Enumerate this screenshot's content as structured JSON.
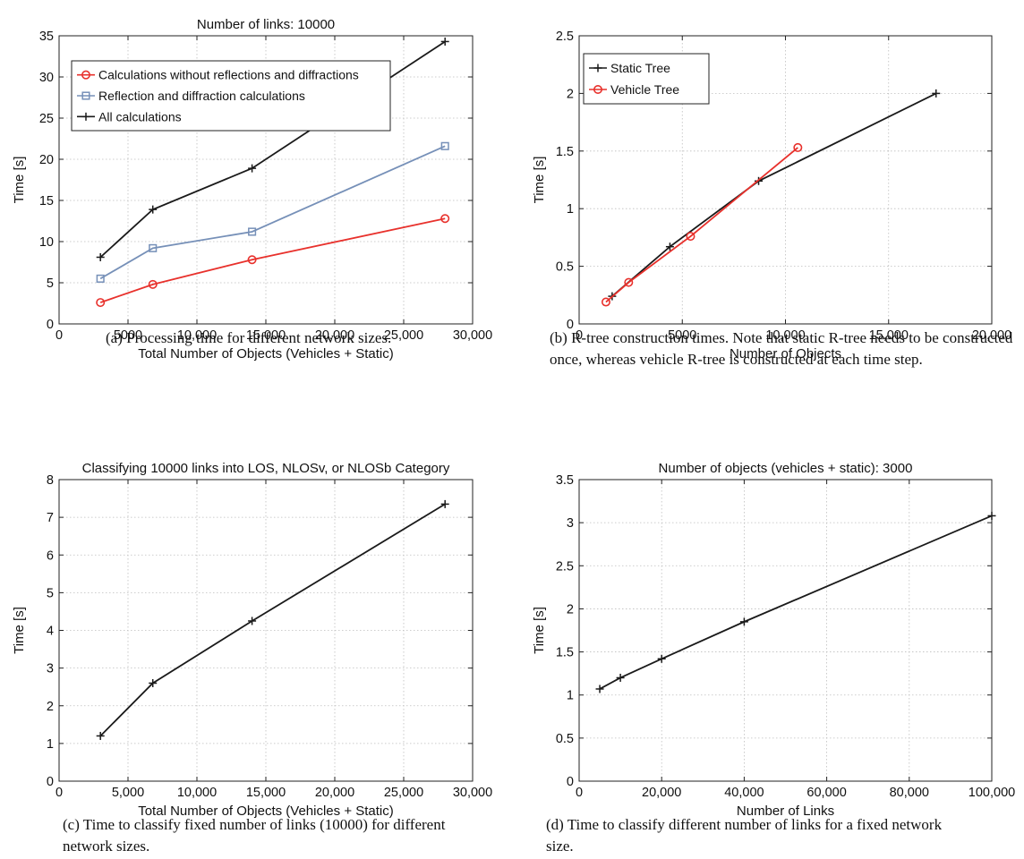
{
  "chart_data": [
    {
      "id": "a",
      "type": "line",
      "title": "Number of links: 10000",
      "xlabel": "Total Number of Objects (Vehicles + Static)",
      "ylabel": "Time [s]",
      "xlim": [
        0,
        30000
      ],
      "ylim": [
        0,
        35
      ],
      "xticks": [
        0,
        5000,
        10000,
        15000,
        20000,
        25000,
        30000
      ],
      "xtick_labels": [
        "0",
        "5000",
        "10,000",
        "15,000",
        "20,000",
        "25,000",
        "30,000"
      ],
      "yticks": [
        0,
        5,
        10,
        15,
        20,
        25,
        30,
        35
      ],
      "ytick_labels": [
        "0",
        "5",
        "10",
        "15",
        "20",
        "25",
        "30",
        "35"
      ],
      "grid": true,
      "legend_position": "top-left",
      "series": [
        {
          "name": "Calculations without reflections and diffractions",
          "color": "#e8312c",
          "marker": "circle",
          "x": [
            3000,
            6800,
            14000,
            28000
          ],
          "y": [
            2.6,
            4.8,
            7.8,
            12.8
          ]
        },
        {
          "name": "Reflection and diffraction calculations",
          "color": "#7690b8",
          "marker": "square",
          "x": [
            3000,
            6800,
            14000,
            28000
          ],
          "y": [
            5.5,
            9.2,
            11.2,
            21.6
          ]
        },
        {
          "name": "All calculations",
          "color": "#1a1a1a",
          "marker": "plus",
          "x": [
            3000,
            6800,
            14000,
            28000
          ],
          "y": [
            8.1,
            13.9,
            18.9,
            34.3
          ]
        }
      ],
      "caption": "(a) Processing time for different network sizes."
    },
    {
      "id": "b",
      "type": "line",
      "title": "",
      "xlabel": "Number of Objects",
      "ylabel": "Time [s]",
      "xlim": [
        0,
        20000
      ],
      "ylim": [
        0,
        2.5
      ],
      "xticks": [
        0,
        5000,
        10000,
        15000,
        20000
      ],
      "xtick_labels": [
        "0",
        "5000",
        "10,000",
        "15,000",
        "20,000"
      ],
      "yticks": [
        0,
        0.5,
        1,
        1.5,
        2,
        2.5
      ],
      "ytick_labels": [
        "0",
        "0.5",
        "1",
        "1.5",
        "2",
        "2.5"
      ],
      "grid": true,
      "legend_position": "top-left",
      "series": [
        {
          "name": "Static Tree",
          "color": "#1a1a1a",
          "marker": "plus",
          "x": [
            1600,
            4400,
            8700,
            17300
          ],
          "y": [
            0.24,
            0.67,
            1.24,
            2.0
          ]
        },
        {
          "name": "Vehicle Tree",
          "color": "#e8312c",
          "marker": "circle",
          "x": [
            1300,
            2400,
            5400,
            10600
          ],
          "y": [
            0.19,
            0.36,
            0.76,
            1.53
          ]
        }
      ],
      "caption": "(b) R-tree construction times. Note that static R-tree needs to be constructed once, whereas vehicle R-tree is constructed at each time step."
    },
    {
      "id": "c",
      "type": "line",
      "title": "Classifying 10000 links into LOS, NLOSv, or NLOSb Category",
      "xlabel": "Total Number of Objects (Vehicles + Static)",
      "ylabel": "Time [s]",
      "xlim": [
        0,
        30000
      ],
      "ylim": [
        0,
        8
      ],
      "xticks": [
        0,
        5000,
        10000,
        15000,
        20000,
        25000,
        30000
      ],
      "xtick_labels": [
        "0",
        "5,000",
        "10,000",
        "15,000",
        "20,000",
        "25,000",
        "30,000"
      ],
      "yticks": [
        0,
        1,
        2,
        3,
        4,
        5,
        6,
        7,
        8
      ],
      "ytick_labels": [
        "0",
        "1",
        "2",
        "3",
        "4",
        "5",
        "6",
        "7",
        "8"
      ],
      "grid": true,
      "legend_position": "none",
      "series": [
        {
          "color": "#1a1a1a",
          "marker": "plus",
          "x": [
            3000,
            6800,
            14000,
            28000
          ],
          "y": [
            1.2,
            2.6,
            4.25,
            7.35
          ]
        }
      ],
      "caption": "(c) Time to classify fixed number of links (10000) for different network sizes."
    },
    {
      "id": "d",
      "type": "line",
      "title": "Number of objects (vehicles + static): 3000",
      "xlabel": "Number of Links",
      "ylabel": "Time [s]",
      "xlim": [
        0,
        100000
      ],
      "ylim": [
        0,
        3.5
      ],
      "xticks": [
        0,
        20000,
        40000,
        60000,
        80000,
        100000
      ],
      "xtick_labels": [
        "0",
        "20,000",
        "40,000",
        "60,000",
        "80,000",
        "100,000"
      ],
      "yticks": [
        0,
        0.5,
        1,
        1.5,
        2,
        2.5,
        3,
        3.5
      ],
      "ytick_labels": [
        "0",
        "0.5",
        "1",
        "1.5",
        "2",
        "2.5",
        "3",
        "3.5"
      ],
      "grid": true,
      "legend_position": "none",
      "series": [
        {
          "color": "#1a1a1a",
          "marker": "plus",
          "x": [
            5000,
            10000,
            20000,
            40000,
            100000
          ],
          "y": [
            1.07,
            1.2,
            1.42,
            1.85,
            3.08
          ]
        }
      ],
      "caption": "(d) Time to classify different number of links for a fixed network size."
    }
  ]
}
